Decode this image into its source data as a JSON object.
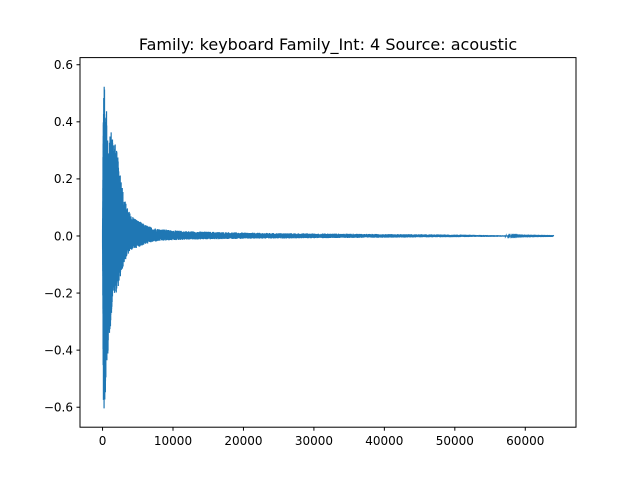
{
  "chart_data": {
    "type": "line",
    "title": "Family: keyboard Family_Int: 4 Source: acoustic",
    "xlabel": "",
    "ylabel": "",
    "xlim": [
      -3200,
      67200
    ],
    "ylim": [
      -0.67,
      0.625
    ],
    "x_ticks": [
      0,
      10000,
      20000,
      30000,
      40000,
      50000,
      60000
    ],
    "y_ticks": [
      -0.6,
      -0.4,
      -0.2,
      0.0,
      0.2,
      0.4,
      0.6
    ],
    "x_tick_labels": [
      "0",
      "10000",
      "20000",
      "30000",
      "40000",
      "50000",
      "60000"
    ],
    "y_tick_labels": [
      "−0.6",
      "−0.4",
      "−0.2",
      "0.0",
      "0.2",
      "0.4",
      "0.6"
    ],
    "grid": false,
    "series": [
      {
        "color": "#1f77b4",
        "n_samples": 64000,
        "envelope": {
          "x": [
            0,
            100,
            200,
            300,
            400,
            500,
            700,
            900,
            1200,
            1500,
            2000,
            2500,
            3000,
            3500,
            4000,
            5000,
            6000,
            7000,
            8000,
            10000,
            12000,
            15000,
            20000,
            25000,
            30000,
            35000,
            40000,
            45000,
            50000,
            55000,
            60000,
            64000
          ],
          "upper": [
            0.02,
            0.45,
            0.57,
            0.5,
            0.43,
            0.49,
            0.35,
            0.32,
            0.38,
            0.36,
            0.3,
            0.23,
            0.14,
            0.1,
            0.075,
            0.055,
            0.04,
            0.03,
            0.025,
            0.02,
            0.017,
            0.015,
            0.012,
            0.01,
            0.009,
            0.008,
            0.007,
            0.006,
            0.005,
            0.003,
            0.001,
            0.0005
          ],
          "lower": [
            -0.02,
            -0.58,
            -0.62,
            -0.6,
            -0.55,
            -0.5,
            -0.43,
            -0.37,
            -0.3,
            -0.2,
            -0.2,
            -0.15,
            -0.1,
            -0.07,
            -0.05,
            -0.04,
            -0.03,
            -0.022,
            -0.018,
            -0.015,
            -0.013,
            -0.012,
            -0.01,
            -0.009,
            -0.008,
            -0.007,
            -0.006,
            -0.005,
            -0.004,
            -0.003,
            -0.001,
            -0.0005
          ]
        }
      }
    ]
  }
}
